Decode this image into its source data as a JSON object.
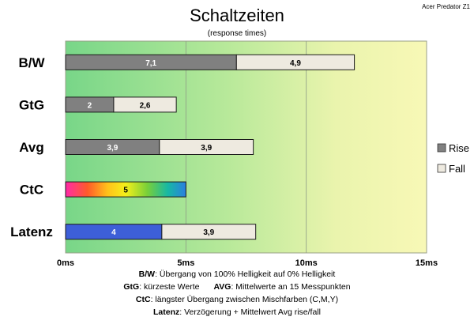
{
  "corner_label": "Acer Predator Z1",
  "chart_data": {
    "type": "bar",
    "orientation": "horizontal",
    "stacked": true,
    "title": "Schaltzeiten",
    "subtitle": "(response times)",
    "categories": [
      "B/W",
      "GtG",
      "Avg",
      "CtC",
      "Latenz"
    ],
    "series": [
      {
        "name": "Rise",
        "values": [
          7.1,
          2,
          3.9,
          5,
          4
        ],
        "labels": [
          "7,1",
          "2",
          "3,9",
          "5",
          "4"
        ],
        "color": "#808080"
      },
      {
        "name": "Fall",
        "values": [
          4.9,
          2.6,
          3.9,
          0,
          3.9
        ],
        "labels": [
          "4,9",
          "2,6",
          "3,9",
          "",
          "3,9"
        ],
        "color": "#eeeae0"
      }
    ],
    "special_colors": {
      "CtC": "rainbow",
      "Latenz_rise": "#3d5fd8"
    },
    "xlim": [
      0,
      15
    ],
    "xticks": [
      0,
      5,
      10,
      15
    ],
    "xtick_labels": [
      "0ms",
      "5ms",
      "10ms",
      "15ms"
    ],
    "grid": true,
    "legend_position": "right",
    "background_gradient": [
      "#7ad889",
      "#c9eea3",
      "#f6f7b4"
    ]
  },
  "notes": [
    {
      "key": "B/W",
      "text": ":  Übergang von 100% Helligkeit auf 0% Helligkeit"
    },
    {
      "key": "GtG",
      "text": ": kürzeste  Werte",
      "key2": "AVG",
      "text2": ": Mittelwerte an 15 Messpunkten"
    },
    {
      "key": "CtC",
      "text": ": längster Übergang zwischen Mischfarben (C,M,Y)"
    },
    {
      "key": "Latenz",
      "text": ": Verzögerung  + Mittelwert Avg rise/fall"
    }
  ]
}
